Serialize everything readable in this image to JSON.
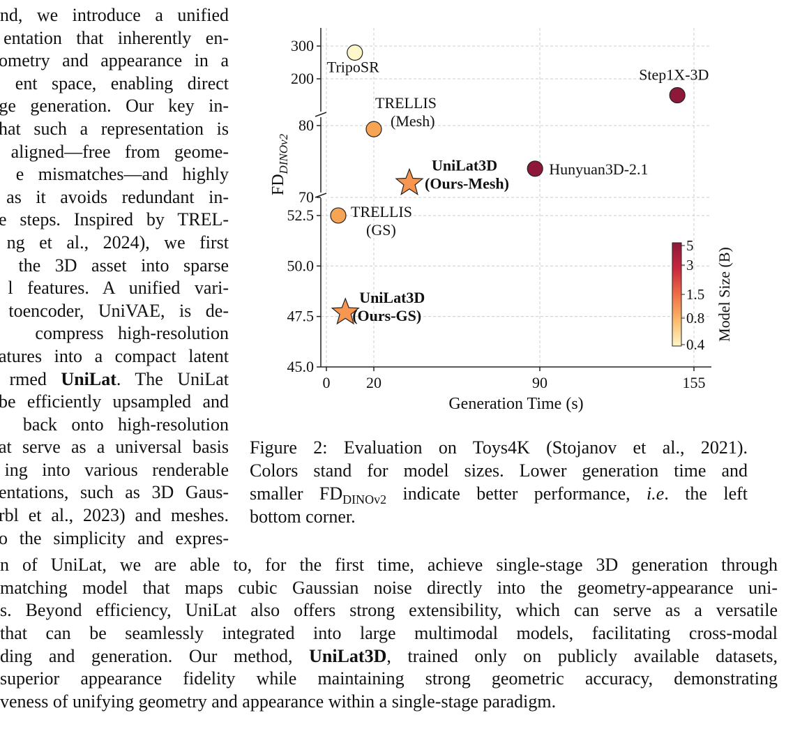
{
  "left_column_lines": [
    "nd, we introduce a unified",
    "entation that inherently en-",
    "ometry and appearance in a",
    "ent space, enabling direct",
    "ge generation. Our key in-",
    "hat such a representation is",
    "aligned—free from geome-",
    "e mismatches—and highly",
    "as it avoids redundant in-",
    "e steps. Inspired by TREL-",
    "ng et al., 2024), we first",
    "the 3D asset into sparse",
    "l features. A unified vari-",
    "toencoder, UniVAE, is de-",
    "compress high-resolution",
    "atures into a compact latent",
    "rmed |UniLat|. The UniLat",
    "be efficiently upsampled and",
    "back onto high-resolution",
    "at serve as a universal basis",
    "ing into various renderable",
    "entations, such as 3D Gaus-",
    "rbl et al., 2023) and meshes.",
    "o the simplicity and expres-"
  ],
  "bottom_lines": [
    "n of UniLat, we are able to, for the first time, achieve single-stage 3D generation through",
    "matching model that maps cubic Gaussian noise directly into the geometry-appearance uni-",
    "s. Beyond efficiency, UniLat also offers strong extensibility, which can serve as a versatile",
    "that can be seamlessly integrated into large multimodal models, facilitating cross-modal",
    "ding and generation. Our method, |UniLat3D|, trained only on publicly available datasets,",
    "superior appearance fidelity while maintaining strong geometric accuracy, demonstrating",
    "veness of unifying geometry and appearance within a single-stage paradigm."
  ],
  "caption": {
    "line1": "Figure 2: Evaluation on Toys4K (Stojanov et al., 2021).",
    "line2": "Colors stand for model sizes. Lower generation time and",
    "line3_a": "smaller FD",
    "line3_sub": "DINOv2",
    "line3_b": " indicate better performance, ",
    "line3_ie": "i.e",
    "line3_c": ". the left",
    "line4": "bottom corner."
  },
  "chart_data": {
    "type": "scatter",
    "xlabel": "Generation Time (s)",
    "ylabel_main": "FD",
    "ylabel_sub": "DINOv2",
    "x_ticks": [
      0,
      20,
      90,
      155
    ],
    "x_range": [
      -2,
      157
    ],
    "y_axis_segments": [
      {
        "range": [
          45.0,
          53.5
        ],
        "ticks": [
          "45.0",
          "47.5",
          "50.0",
          "52.5"
        ]
      },
      {
        "range": [
          70,
          85
        ],
        "ticks": [
          "70",
          "80"
        ]
      },
      {
        "range": [
          100,
          320
        ],
        "ticks": [
          "200",
          "300"
        ]
      }
    ],
    "grid": true,
    "points": [
      {
        "label": "TripoSR",
        "x": 12,
        "y": 280,
        "marker": "circle",
        "size_b": 0.4,
        "color": "#fdf7c9"
      },
      {
        "label": "Step1X-3D",
        "x": 148,
        "y": 150,
        "marker": "circle",
        "size_b": 4.8,
        "color": "#8e1839"
      },
      {
        "label": "TRELLIS (Mesh)",
        "x": 20,
        "y": 79.5,
        "marker": "circle",
        "size_b": 1.1,
        "color": "#f8a455"
      },
      {
        "label": "Hunyuan3D-2.1",
        "x": 88,
        "y": 74,
        "marker": "circle",
        "size_b": 3.3,
        "color": "#8e1839"
      },
      {
        "label": "UniLat3D (Ours-Mesh)",
        "x": 35,
        "y": 72,
        "marker": "star",
        "size_b": 1.2,
        "color": "#f79650",
        "bold": true
      },
      {
        "label": "TRELLIS (GS)",
        "x": 5,
        "y": 52.5,
        "marker": "circle",
        "size_b": 1.1,
        "color": "#f8a455"
      },
      {
        "label": "UniLat3D (Ours-GS)",
        "x": 8,
        "y": 47.7,
        "marker": "star",
        "size_b": 1.2,
        "color": "#f79650",
        "bold": true
      }
    ],
    "colorbar": {
      "label": "Model Size (B)",
      "ticks": [
        "5",
        "3",
        "1.5",
        "0.8",
        "0.4"
      ],
      "colors": [
        "#8e1839",
        "#c8283f",
        "#ef6e45",
        "#fbba6b",
        "#fdf7c9"
      ]
    }
  }
}
